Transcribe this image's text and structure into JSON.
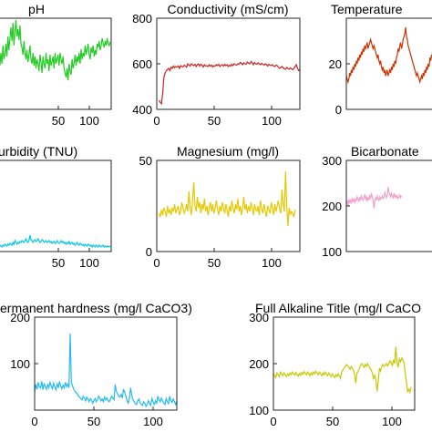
{
  "figure": {
    "background": "#ffffff",
    "axis_color": "#262626"
  },
  "chart_data": [
    {
      "id": "ph",
      "type": "line",
      "title": "pH",
      "color": "#22cc22",
      "xlim": [
        0,
        120
      ],
      "ylim": null,
      "xticks": [
        "50",
        "100"
      ],
      "yticks": [],
      "series": [
        {
          "x_start": 0,
          "x_step": 1,
          "values": [
            0.45,
            0.5,
            0.35,
            0.55,
            0.6,
            0.4,
            0.5,
            0.45,
            0.58,
            0.48,
            0.62,
            0.5,
            0.7,
            0.55,
            0.6,
            0.72,
            0.58,
            0.8,
            0.65,
            0.78,
            0.9,
            0.75,
            0.95,
            0.7,
            0.85,
            0.98,
            0.8,
            0.88,
            0.76,
            0.92,
            0.72,
            0.68,
            0.6,
            0.75,
            0.62,
            0.55,
            0.65,
            0.52,
            0.6,
            0.7,
            0.55,
            0.5,
            0.62,
            0.48,
            0.58,
            0.45,
            0.55,
            0.5,
            0.42,
            0.6,
            0.52,
            0.4,
            0.58,
            0.5,
            0.45,
            0.62,
            0.5,
            0.55,
            0.42,
            0.6,
            0.48,
            0.52,
            0.58,
            0.45,
            0.62,
            0.5,
            0.55,
            0.6,
            0.48,
            0.62,
            0.55,
            0.5,
            0.58,
            0.45,
            0.4,
            0.35,
            0.45,
            0.32,
            0.5,
            0.42,
            0.38,
            0.55,
            0.45,
            0.5,
            0.6,
            0.48,
            0.58,
            0.52,
            0.62,
            0.5,
            0.66,
            0.55,
            0.62,
            0.58,
            0.7,
            0.6,
            0.66,
            0.72,
            0.6,
            0.55,
            0.68,
            0.62,
            0.7,
            0.58,
            0.65,
            0.6,
            0.72,
            0.68,
            0.75,
            0.65,
            0.7,
            0.78,
            0.72,
            0.68,
            0.75,
            0.7,
            0.78,
            0.72,
            0.7,
            0.74
          ]
        }
      ]
    },
    {
      "id": "conductivity",
      "type": "line",
      "title": "Conductivity (mS/cm)",
      "color": "#cc2222",
      "xlim": [
        0,
        120
      ],
      "ylim": [
        400,
        800
      ],
      "xticks": [
        "0",
        "50",
        "100"
      ],
      "yticks": [
        "400",
        "600",
        "800"
      ],
      "series": [
        {
          "x_start": 2,
          "x_step": 1,
          "values": [
            440,
            430,
            425,
            470,
            540,
            560,
            570,
            575,
            580,
            570,
            585,
            580,
            590,
            582,
            588,
            585,
            590,
            580,
            592,
            588,
            586,
            594,
            590,
            585,
            600,
            595,
            590,
            600,
            596,
            592,
            598,
            588,
            596,
            600,
            590,
            598,
            594,
            586,
            596,
            590,
            592,
            588,
            596,
            590,
            594,
            586,
            592,
            590,
            596,
            592,
            598,
            588,
            594,
            596,
            590,
            598,
            592,
            596,
            588,
            594,
            590,
            598,
            592,
            600,
            596,
            594,
            600,
            598,
            606,
            602,
            596,
            604,
            600,
            598,
            608,
            602,
            600,
            610,
            604,
            596,
            606,
            600,
            598,
            604,
            600,
            596,
            602,
            598,
            594,
            600,
            596,
            590,
            598,
            594,
            592,
            596,
            590,
            588,
            594,
            592,
            586,
            580,
            584,
            588,
            582,
            578,
            576,
            584,
            580,
            576,
            582,
            578,
            574,
            580,
            588,
            596,
            580,
            570,
            576,
            572
          ]
        }
      ]
    },
    {
      "id": "temperature",
      "type": "line",
      "title": "Temperature",
      "color": "#cc3300",
      "xlim": [
        0,
        120
      ],
      "ylim": [
        0,
        30
      ],
      "xticks": [],
      "yticks": [
        "0",
        "20"
      ],
      "series": [
        {
          "x_start": 0,
          "x_step": 1,
          "values": [
            11,
            10,
            9,
            10,
            12,
            11,
            13,
            12,
            14,
            13,
            15,
            14,
            16,
            15,
            17,
            16,
            18,
            17,
            19,
            18,
            20,
            19,
            21,
            20,
            21,
            22,
            20,
            21,
            22,
            23,
            22,
            21,
            20,
            21,
            20,
            19,
            18,
            17,
            18,
            16,
            15,
            16,
            14,
            13,
            14,
            12,
            13,
            11,
            12,
            13,
            11,
            12,
            13,
            12,
            14,
            13,
            15,
            14,
            16,
            15,
            17,
            18,
            20,
            19,
            21,
            22,
            20,
            21,
            23,
            24,
            25,
            27,
            24,
            23,
            21,
            20,
            19,
            18,
            17,
            16,
            15,
            14,
            13,
            12,
            11,
            12,
            11,
            10,
            9,
            10,
            11,
            10,
            12,
            11,
            13,
            12,
            14,
            13,
            15,
            14,
            17,
            16,
            18,
            17,
            19,
            18,
            21,
            20,
            22,
            21,
            23,
            22,
            24,
            23,
            25,
            24,
            26,
            25,
            27,
            26
          ]
        }
      ]
    },
    {
      "id": "turbidity",
      "type": "line",
      "title": "urbidity (TNU)",
      "color": "#00c8e6",
      "xlim": [
        0,
        120
      ],
      "ylim": null,
      "xticks": [
        "50",
        "100"
      ],
      "yticks": [],
      "series": [
        {
          "x_start": 0,
          "x_step": 1,
          "values": [
            0.04,
            0.05,
            0.04,
            0.06,
            0.05,
            0.04,
            0.05,
            0.06,
            0.05,
            0.07,
            0.06,
            0.05,
            0.07,
            0.06,
            0.08,
            0.07,
            0.06,
            0.08,
            0.07,
            0.09,
            0.08,
            0.07,
            0.1,
            0.08,
            0.12,
            0.1,
            0.08,
            0.1,
            0.09,
            0.11,
            0.1,
            0.12,
            0.11,
            0.1,
            0.12,
            0.14,
            0.11,
            0.1,
            0.12,
            0.18,
            0.13,
            0.12,
            0.1,
            0.12,
            0.13,
            0.11,
            0.12,
            0.14,
            0.12,
            0.1,
            0.11,
            0.13,
            0.12,
            0.1,
            0.11,
            0.12,
            0.1,
            0.11,
            0.12,
            0.1,
            0.11,
            0.09,
            0.1,
            0.11,
            0.09,
            0.1,
            0.12,
            0.1,
            0.09,
            0.1,
            0.12,
            0.1,
            0.11,
            0.09,
            0.1,
            0.08,
            0.1,
            0.09,
            0.11,
            0.08,
            0.09,
            0.1,
            0.08,
            0.09,
            0.07,
            0.08,
            0.1,
            0.08,
            0.07,
            0.09,
            0.08,
            0.07,
            0.08,
            0.06,
            0.08,
            0.07,
            0.06,
            0.08,
            0.07,
            0.06,
            0.07,
            0.05,
            0.07,
            0.06,
            0.05,
            0.07,
            0.06,
            0.05,
            0.07,
            0.06,
            0.05,
            0.06,
            0.07,
            0.05,
            0.06,
            0.05,
            0.06,
            0.05,
            0.06,
            0.05
          ]
        }
      ]
    },
    {
      "id": "magnesium",
      "type": "line",
      "title": "Magnesium (mg/l)",
      "color": "#e6c800",
      "xlim": [
        0,
        120
      ],
      "ylim": [
        0,
        50
      ],
      "xticks": [
        "0",
        "50",
        "100"
      ],
      "yticks": [
        "0",
        "50"
      ],
      "series": [
        {
          "x_start": 2,
          "x_step": 1,
          "values": [
            21,
            19,
            23,
            20,
            24,
            22,
            19,
            25,
            21,
            23,
            20,
            24,
            22,
            26,
            21,
            23,
            25,
            20,
            22,
            27,
            24,
            21,
            23,
            26,
            22,
            33,
            24,
            20,
            28,
            38,
            25,
            22,
            30,
            24,
            27,
            21,
            26,
            23,
            29,
            22,
            25,
            20,
            24,
            27,
            22,
            26,
            21,
            24,
            28,
            23,
            20,
            25,
            22,
            27,
            24,
            21,
            26,
            23,
            19,
            25,
            22,
            28,
            24,
            21,
            26,
            23,
            29,
            22,
            25,
            20,
            24,
            30,
            23,
            26,
            21,
            25,
            22,
            27,
            24,
            20,
            26,
            23,
            22,
            25,
            20,
            28,
            24,
            21,
            26,
            22,
            19,
            25,
            23,
            21,
            27,
            24,
            20,
            26,
            22,
            25,
            28,
            23,
            21,
            34,
            26,
            22,
            44,
            25,
            14,
            24,
            20,
            22,
            21,
            19,
            23
          ]
        }
      ]
    },
    {
      "id": "bicarbonate",
      "type": "line",
      "title": "Bicarbonate",
      "color": "#f0a0cc",
      "xlim": [
        0,
        120
      ],
      "ylim": [
        100,
        300
      ],
      "xticks": [],
      "yticks": [
        "100",
        "200",
        "300"
      ],
      "series": [
        {
          "x_start": 0,
          "x_step": 1,
          "values": [
            205,
            210,
            200,
            215,
            208,
            212,
            205,
            218,
            210,
            214,
            208,
            216,
            212,
            220,
            215,
            210,
            218,
            214,
            222,
            216,
            212,
            218,
            225,
            215,
            220,
            212,
            218,
            214,
            222,
            216,
            228,
            220,
            215,
            195,
            210,
            218,
            214,
            222,
            216,
            212,
            220,
            215,
            218,
            222,
            216,
            220,
            230,
            225,
            218,
            222,
            242,
            230,
            225,
            220,
            228,
            222,
            218,
            226,
            220,
            224,
            218,
            222,
            216,
            220,
            224,
            218,
            222
          ]
        }
      ]
    },
    {
      "id": "permanent_hardness",
      "type": "line",
      "title": "ermanent hardness (mg/l CaCO3)",
      "color": "#22bbee",
      "xlim": [
        0,
        120
      ],
      "ylim": [
        0,
        200
      ],
      "xticks": [
        "0",
        "50",
        "100"
      ],
      "yticks": [
        "100",
        "200"
      ],
      "series": [
        {
          "x_start": 0,
          "x_step": 1,
          "values": [
            40,
            55,
            45,
            60,
            50,
            48,
            62,
            44,
            58,
            50,
            45,
            55,
            48,
            60,
            52,
            46,
            58,
            50,
            44,
            56,
            48,
            62,
            52,
            46,
            54,
            48,
            60,
            50,
            56,
            48,
            165,
            60,
            52,
            45,
            40,
            38,
            35,
            30,
            28,
            25,
            22,
            30,
            26,
            20,
            28,
            24,
            18,
            25,
            22,
            15,
            20,
            25,
            18,
            22,
            30,
            26,
            20,
            24,
            18,
            28,
            22,
            26,
            20,
            18,
            24,
            30,
            26,
            22,
            55,
            40,
            35,
            30,
            28,
            34,
            26,
            45,
            38,
            30,
            20,
            15,
            26,
            48,
            32,
            22,
            18,
            14,
            12,
            20,
            24,
            16,
            12,
            10,
            18,
            15,
            8,
            12,
            20,
            14,
            10,
            25,
            18,
            12,
            20,
            15,
            30,
            22,
            18,
            26,
            20,
            15,
            12,
            25,
            18,
            14,
            30,
            20,
            16,
            24,
            18,
            12,
            20
          ]
        }
      ]
    },
    {
      "id": "full_alkaline_title",
      "type": "line",
      "title": "Full Alkaline Title (mg/l CaCO",
      "color": "#c8c800",
      "xlim": [
        0,
        120
      ],
      "ylim": [
        100,
        300
      ],
      "xticks": [
        "0",
        "50",
        "100"
      ],
      "yticks": [
        "100",
        "200",
        "300"
      ],
      "series": [
        {
          "x_start": 0,
          "x_step": 1,
          "values": [
            178,
            175,
            170,
            180,
            176,
            172,
            182,
            178,
            174,
            180,
            176,
            172,
            178,
            174,
            180,
            176,
            182,
            178,
            175,
            181,
            177,
            173,
            179,
            175,
            181,
            177,
            183,
            179,
            176,
            182,
            178,
            174,
            180,
            176,
            182,
            178,
            184,
            180,
            176,
            182,
            178,
            174,
            180,
            176,
            182,
            178,
            174,
            180,
            176,
            172,
            178,
            174,
            170,
            176,
            172,
            178,
            174,
            168,
            182,
            186,
            190,
            194,
            198,
            196,
            192,
            188,
            194,
            190,
            186,
            176,
            158,
            180,
            184,
            190,
            196,
            200,
            196,
            192,
            198,
            194,
            200,
            196,
            190,
            186,
            180,
            168,
            175,
            165,
            140,
            162,
            190,
            184,
            194,
            198,
            194,
            196,
            200,
            195,
            200,
            206,
            202,
            196,
            208,
            200,
            236,
            204,
            192,
            210,
            204,
            212,
            208,
            200,
            178,
            160,
            140,
            145,
            138,
            150
          ]
        }
      ]
    }
  ]
}
